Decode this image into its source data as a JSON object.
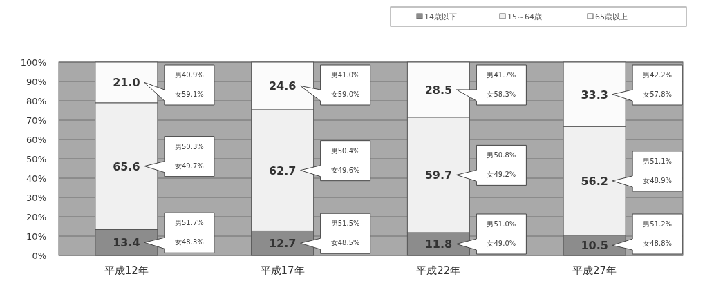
{
  "chart_data": {
    "type": "bar",
    "stacked": true,
    "categories": [
      "平成12年",
      "平成17年",
      "平成22年",
      "平成27年"
    ],
    "series": [
      {
        "name": "14歳以下",
        "color": "#8c8c8c",
        "values": [
          13.4,
          12.7,
          11.8,
          10.5
        ],
        "value_labels": [
          "13.4",
          "12.7",
          "11.8",
          "10.5"
        ]
      },
      {
        "name": "15～64歳",
        "color": "#f0f0f0",
        "values": [
          65.6,
          62.7,
          59.7,
          56.2
        ],
        "value_labels": [
          "65.6",
          "62.7",
          "59.7",
          "56.2"
        ]
      },
      {
        "name": "65歳以上",
        "color": "#fbfbfb",
        "values": [
          21.0,
          24.6,
          28.5,
          33.3
        ],
        "value_labels": [
          "21.0",
          "24.6",
          "28.5",
          "33.3"
        ]
      }
    ],
    "ylim": [
      0,
      100
    ],
    "yticks": [
      {
        "value": 0,
        "label": "0%"
      },
      {
        "value": 10,
        "label": "10%"
      },
      {
        "value": 20,
        "label": "20%"
      },
      {
        "value": 30,
        "label": "30%"
      },
      {
        "value": 40,
        "label": "40%"
      },
      {
        "value": 50,
        "label": "50%"
      },
      {
        "value": 60,
        "label": "60%"
      },
      {
        "value": 70,
        "label": "70%"
      },
      {
        "value": 80,
        "label": "80%"
      },
      {
        "value": 90,
        "label": "90%"
      },
      {
        "value": 100,
        "label": "100%"
      }
    ],
    "grid": "y",
    "legend": "top right",
    "annotations": [
      "男51.7%",
      "女48.3%",
      "男50.3%",
      "女49.7%",
      "男40.9%",
      "女59.1%",
      "男51.5%",
      "女48.5%",
      "男50.4%",
      "女49.6%",
      "男41.0%",
      "女59.0%",
      "男51.0%",
      "女49.0%",
      "男50.8%",
      "女49.2%",
      "男41.7%",
      "女58.3%",
      "男51.2%",
      "女48.8%",
      "男51.1%",
      "女48.9%",
      "男42.2%",
      "女57.8%"
    ]
  }
}
